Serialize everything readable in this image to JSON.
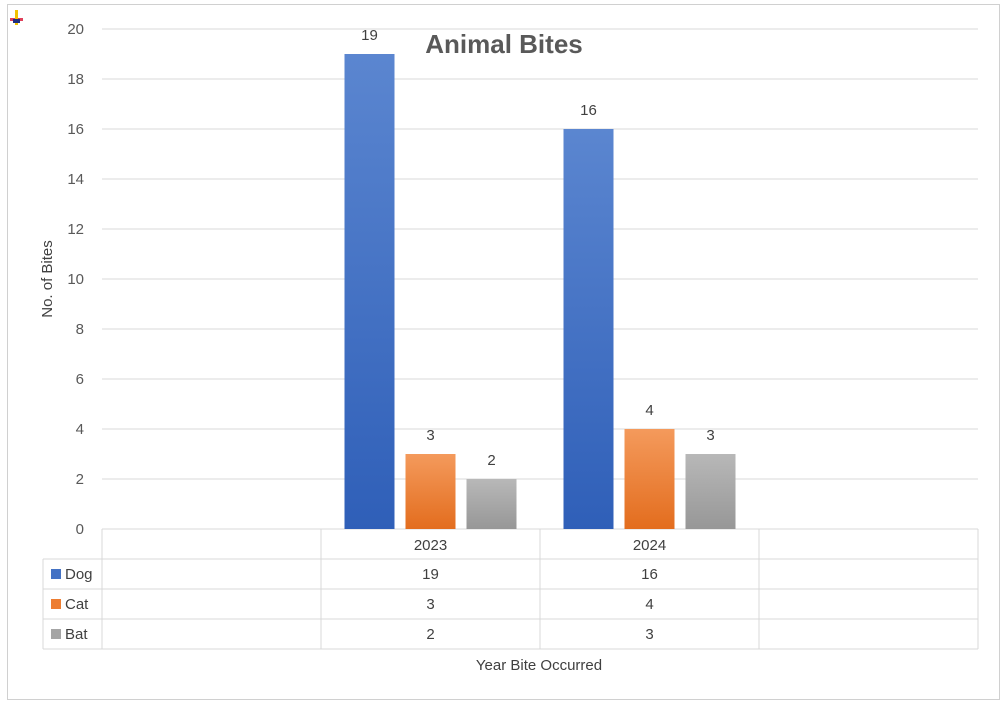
{
  "chart_data": {
    "type": "bar",
    "title": "Animal Bites",
    "xlabel": "Year Bite Occurred",
    "ylabel": "No. of Bites",
    "ylim": [
      0,
      20
    ],
    "yticks": [
      0,
      2,
      4,
      6,
      8,
      10,
      12,
      14,
      16,
      18,
      20
    ],
    "categories": [
      "2023",
      "2024"
    ],
    "series": [
      {
        "name": "Dog",
        "values": [
          19,
          16
        ],
        "color": "#4472c4"
      },
      {
        "name": "Cat",
        "values": [
          3,
          4
        ],
        "color": "#ed7d31"
      },
      {
        "name": "Bat",
        "values": [
          2,
          3
        ],
        "color": "#a5a5a5"
      }
    ],
    "grid": true,
    "legend": "data-table"
  }
}
